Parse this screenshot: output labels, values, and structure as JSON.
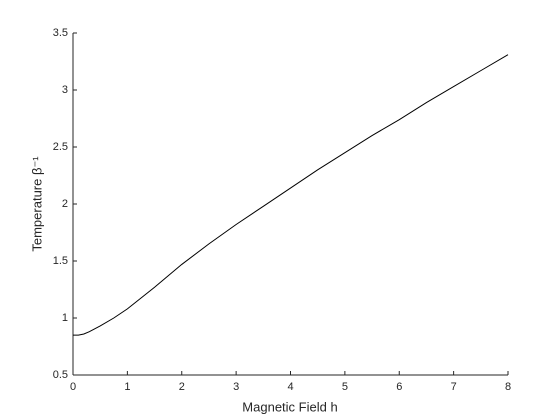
{
  "chart_data": {
    "type": "line",
    "xlabel": "Magnetic Field h",
    "ylabel": "Temperature β⁻¹",
    "x": [
      0,
      0.1,
      0.2,
      0.3,
      0.5,
      0.75,
      1,
      1.5,
      2,
      2.5,
      3,
      3.5,
      4,
      4.5,
      5,
      5.5,
      6,
      6.5,
      7,
      7.5,
      8
    ],
    "series": [
      {
        "color": "#000000",
        "values": [
          0.85,
          0.85,
          0.86,
          0.88,
          0.93,
          1.0,
          1.08,
          1.27,
          1.47,
          1.65,
          1.82,
          1.98,
          2.14,
          2.3,
          2.45,
          2.6,
          2.74,
          2.89,
          3.03,
          3.17,
          3.31
        ]
      }
    ],
    "xlim": [
      0,
      8
    ],
    "xticks": [
      0,
      1,
      2,
      3,
      4,
      5,
      6,
      7,
      8
    ],
    "ylim": [
      0.5,
      3.5
    ],
    "yticks": [
      0.5,
      1,
      1.5,
      2,
      2.5,
      3,
      3.5
    ]
  }
}
